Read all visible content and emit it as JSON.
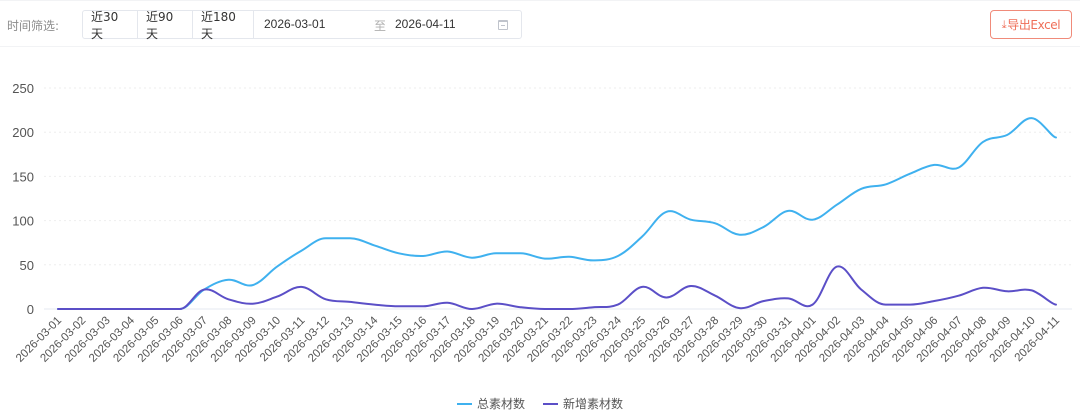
{
  "filter": {
    "label": "时间筛选:",
    "ranges": [
      {
        "label": "近30天"
      },
      {
        "label": "近90天"
      },
      {
        "label": "近180天"
      }
    ],
    "start_date": "2026-03-01",
    "separator": "至",
    "end_date": "2026-04-11",
    "calendar_icon": "calendar-icon"
  },
  "export": {
    "icon": "download-icon",
    "icon_glyph": "⤓",
    "label": "导出Excel",
    "color": "#ef6e58"
  },
  "chart_data": {
    "type": "line",
    "title": "",
    "xlabel": "",
    "ylabel": "",
    "ylim": [
      0,
      250
    ],
    "yticks": [
      0,
      50,
      100,
      150,
      200,
      250
    ],
    "grid": true,
    "smooth": true,
    "legend_position": "bottom-center",
    "categories": [
      "2026-03-01",
      "2026-03-02",
      "2026-03-03",
      "2026-03-04",
      "2026-03-05",
      "2026-03-06",
      "2026-03-07",
      "2026-03-08",
      "2026-03-09",
      "2026-03-10",
      "2026-03-11",
      "2026-03-12",
      "2026-03-13",
      "2026-03-14",
      "2026-03-15",
      "2026-03-16",
      "2026-03-17",
      "2026-03-18",
      "2026-03-19",
      "2026-03-20",
      "2026-03-21",
      "2026-03-22",
      "2026-03-23",
      "2026-03-24",
      "2026-03-25",
      "2026-03-26",
      "2026-03-27",
      "2026-03-28",
      "2026-03-29",
      "2026-03-30",
      "2026-03-31",
      "2026-04-01",
      "2026-04-02",
      "2026-04-03",
      "2026-04-04",
      "2026-04-05",
      "2026-04-06",
      "2026-04-07",
      "2026-04-08",
      "2026-04-09",
      "2026-04-10",
      "2026-04-11"
    ],
    "series": [
      {
        "name": "总素材数",
        "color": "#3fb1ef",
        "values": [
          0,
          0,
          0,
          0,
          0,
          0,
          22,
          33,
          27,
          48,
          66,
          80,
          80,
          72,
          63,
          60,
          65,
          58,
          63,
          63,
          57,
          59,
          55,
          60,
          82,
          110,
          101,
          97,
          84,
          93,
          111,
          101,
          118,
          136,
          141,
          153,
          163,
          160,
          189,
          197,
          216,
          194
        ]
      },
      {
        "name": "新增素材数",
        "color": "#5b4fc7",
        "values": [
          0,
          0,
          0,
          0,
          0,
          0,
          22,
          11,
          6,
          14,
          25,
          11,
          8,
          5,
          3,
          3,
          7,
          0,
          6,
          2,
          0,
          0,
          2,
          5,
          25,
          13,
          26,
          15,
          1,
          9,
          12,
          5,
          48,
          22,
          5,
          5,
          9,
          15,
          24,
          20,
          21,
          5
        ]
      }
    ]
  }
}
